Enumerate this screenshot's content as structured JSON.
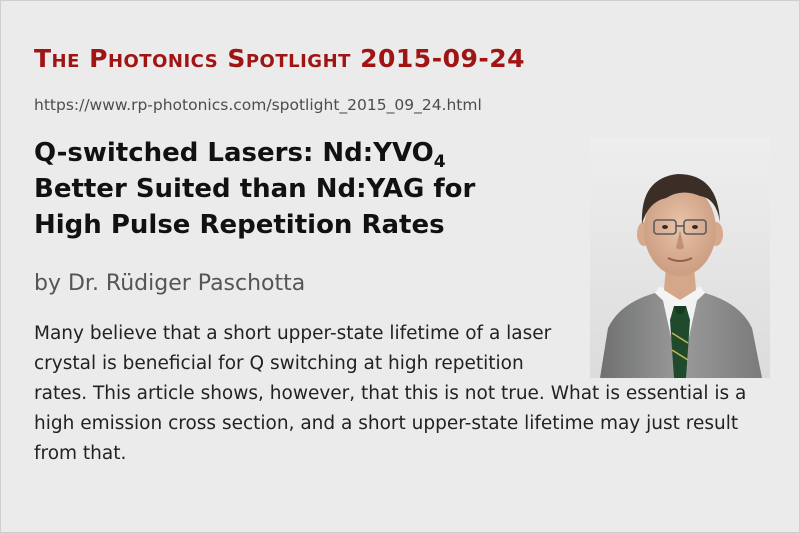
{
  "header": {
    "title": "The Photonics Spotlight 2015-09-24"
  },
  "url": "https://www.rp-photonics.com/spotlight_2015_09_24.html",
  "article": {
    "title_line1_main": "Q-switched Lasers: Nd:YVO",
    "title_line1_sub": "4",
    "title_line2": "Better Suited than Nd:YAG for",
    "title_line3": "High Pulse Repetition Rates",
    "author": "by Dr. Rüdiger Paschotta",
    "summary": "Many believe that a short upper-state lifetime of a laser crystal is beneficial for Q switching at high repetition rates. This article shows, however, that this is not true. What is essential is a high emission cross section, and a short upper-state lifetime may just result from that."
  },
  "colors": {
    "header": "#a01414",
    "background": "#ebebeb",
    "title": "#111111",
    "author": "#555555",
    "jacket": "#8a8a8a",
    "tie": "#1f4a2c"
  }
}
